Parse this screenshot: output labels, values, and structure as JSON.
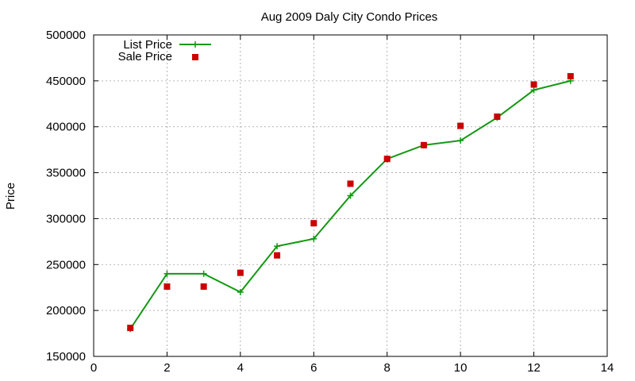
{
  "chart_data": {
    "type": "line",
    "title": "Aug 2009 Daly City Condo Prices",
    "xlabel": "",
    "ylabel": "Price",
    "xlim": [
      0,
      14
    ],
    "ylim": [
      150000,
      500000
    ],
    "xticks": [
      0,
      2,
      4,
      6,
      8,
      10,
      12,
      14
    ],
    "yticks": [
      150000,
      200000,
      250000,
      300000,
      350000,
      400000,
      450000,
      500000
    ],
    "grid": true,
    "legend_position": "top-left",
    "series": [
      {
        "name": "List Price",
        "style": "line+points",
        "marker": "plus",
        "color": "#119911",
        "x": [
          1,
          2,
          3,
          4,
          5,
          6,
          7,
          8,
          9,
          10,
          11,
          12,
          13
        ],
        "y": [
          180000,
          240000,
          240000,
          220000,
          270000,
          278000,
          325000,
          365000,
          380000,
          385000,
          410000,
          440000,
          450000
        ]
      },
      {
        "name": "Sale Price",
        "style": "points",
        "marker": "square",
        "color": "#cc0000",
        "x": [
          1,
          2,
          3,
          4,
          5,
          6,
          7,
          8,
          9,
          10,
          11,
          12,
          13
        ],
        "y": [
          181000,
          226000,
          226000,
          241000,
          260000,
          295000,
          338000,
          365000,
          380000,
          401000,
          411000,
          446000,
          455000
        ]
      }
    ]
  }
}
